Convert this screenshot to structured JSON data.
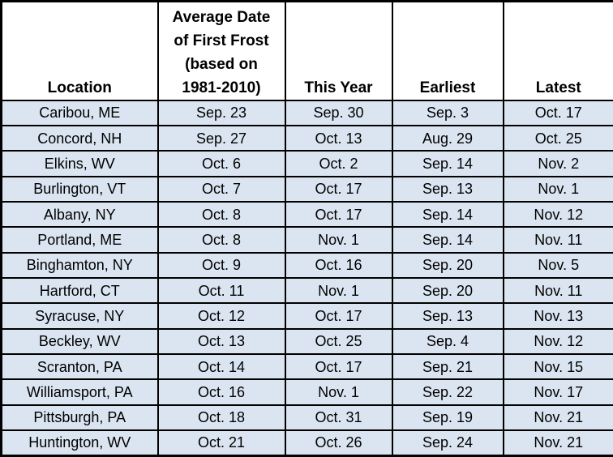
{
  "table": {
    "title": "First frost dates table",
    "colors": {
      "row_background": "#dbe5f1",
      "header_background": "#ffffff",
      "grid_border": "#000000",
      "text": "#000000"
    },
    "header": {
      "location": "Location",
      "average": "Average Date\nof First Frost\n(based on\n1981-2010)",
      "this_year": "This Year",
      "earliest": "Earliest",
      "latest": "Latest"
    },
    "rows": [
      {
        "location": "Caribou, ME",
        "average": "Sep. 23",
        "this_year": "Sep. 30",
        "earliest": "Sep. 3",
        "latest": "Oct. 17"
      },
      {
        "location": "Concord, NH",
        "average": "Sep. 27",
        "this_year": "Oct. 13",
        "earliest": "Aug. 29",
        "latest": "Oct. 25"
      },
      {
        "location": "Elkins, WV",
        "average": "Oct. 6",
        "this_year": "Oct. 2",
        "earliest": "Sep. 14",
        "latest": "Nov. 2"
      },
      {
        "location": "Burlington, VT",
        "average": "Oct. 7",
        "this_year": "Oct. 17",
        "earliest": "Sep. 13",
        "latest": "Nov. 1"
      },
      {
        "location": "Albany, NY",
        "average": "Oct. 8",
        "this_year": "Oct. 17",
        "earliest": "Sep. 14",
        "latest": "Nov. 12"
      },
      {
        "location": "Portland, ME",
        "average": "Oct. 8",
        "this_year": "Nov. 1",
        "earliest": "Sep. 14",
        "latest": "Nov. 11"
      },
      {
        "location": "Binghamton, NY",
        "average": "Oct. 9",
        "this_year": "Oct. 16",
        "earliest": "Sep. 20",
        "latest": "Nov. 5"
      },
      {
        "location": "Hartford, CT",
        "average": "Oct. 11",
        "this_year": "Nov. 1",
        "earliest": "Sep. 20",
        "latest": "Nov. 11"
      },
      {
        "location": "Syracuse, NY",
        "average": "Oct. 12",
        "this_year": "Oct. 17",
        "earliest": "Sep. 13",
        "latest": "Nov. 13"
      },
      {
        "location": "Beckley, WV",
        "average": "Oct. 13",
        "this_year": "Oct. 25",
        "earliest": "Sep. 4",
        "latest": "Nov. 12"
      },
      {
        "location": "Scranton, PA",
        "average": "Oct. 14",
        "this_year": "Oct. 17",
        "earliest": "Sep. 21",
        "latest": "Nov. 15"
      },
      {
        "location": "Williamsport, PA",
        "average": "Oct. 16",
        "this_year": "Nov. 1",
        "earliest": "Sep. 22",
        "latest": "Nov. 17"
      },
      {
        "location": "Pittsburgh, PA",
        "average": "Oct. 18",
        "this_year": "Oct. 31",
        "earliest": "Sep. 19",
        "latest": "Nov. 21"
      },
      {
        "location": "Huntington, WV",
        "average": "Oct. 21",
        "this_year": "Oct. 26",
        "earliest": "Sep. 24",
        "latest": "Nov. 21"
      }
    ]
  },
  "chart_data": {
    "type": "table",
    "title": "Average Date of First Frost (based on 1981-2010) vs This Year, Earliest and Latest",
    "columns": [
      "Location",
      "Average Date of First Frost (based on 1981-2010)",
      "This Year",
      "Earliest",
      "Latest"
    ],
    "rows": [
      [
        "Caribou, ME",
        "Sep. 23",
        "Sep. 30",
        "Sep. 3",
        "Oct. 17"
      ],
      [
        "Concord, NH",
        "Sep. 27",
        "Oct. 13",
        "Aug. 29",
        "Oct. 25"
      ],
      [
        "Elkins, WV",
        "Oct. 6",
        "Oct. 2",
        "Sep. 14",
        "Nov. 2"
      ],
      [
        "Burlington, VT",
        "Oct. 7",
        "Oct. 17",
        "Sep. 13",
        "Nov. 1"
      ],
      [
        "Albany, NY",
        "Oct. 8",
        "Oct. 17",
        "Sep. 14",
        "Nov. 12"
      ],
      [
        "Portland, ME",
        "Oct. 8",
        "Nov. 1",
        "Sep. 14",
        "Nov. 11"
      ],
      [
        "Binghamton, NY",
        "Oct. 9",
        "Oct. 16",
        "Sep. 20",
        "Nov. 5"
      ],
      [
        "Hartford, CT",
        "Oct. 11",
        "Nov. 1",
        "Sep. 20",
        "Nov. 11"
      ],
      [
        "Syracuse, NY",
        "Oct. 12",
        "Oct. 17",
        "Sep. 13",
        "Nov. 13"
      ],
      [
        "Beckley, WV",
        "Oct. 13",
        "Oct. 25",
        "Sep. 4",
        "Nov. 12"
      ],
      [
        "Scranton, PA",
        "Oct. 14",
        "Oct. 17",
        "Sep. 21",
        "Nov. 15"
      ],
      [
        "Williamsport, PA",
        "Oct. 16",
        "Nov. 1",
        "Sep. 22",
        "Nov. 17"
      ],
      [
        "Pittsburgh, PA",
        "Oct. 18",
        "Oct. 31",
        "Sep. 19",
        "Nov. 21"
      ],
      [
        "Huntington, WV",
        "Oct. 21",
        "Oct. 26",
        "Sep. 24",
        "Nov. 21"
      ]
    ]
  }
}
